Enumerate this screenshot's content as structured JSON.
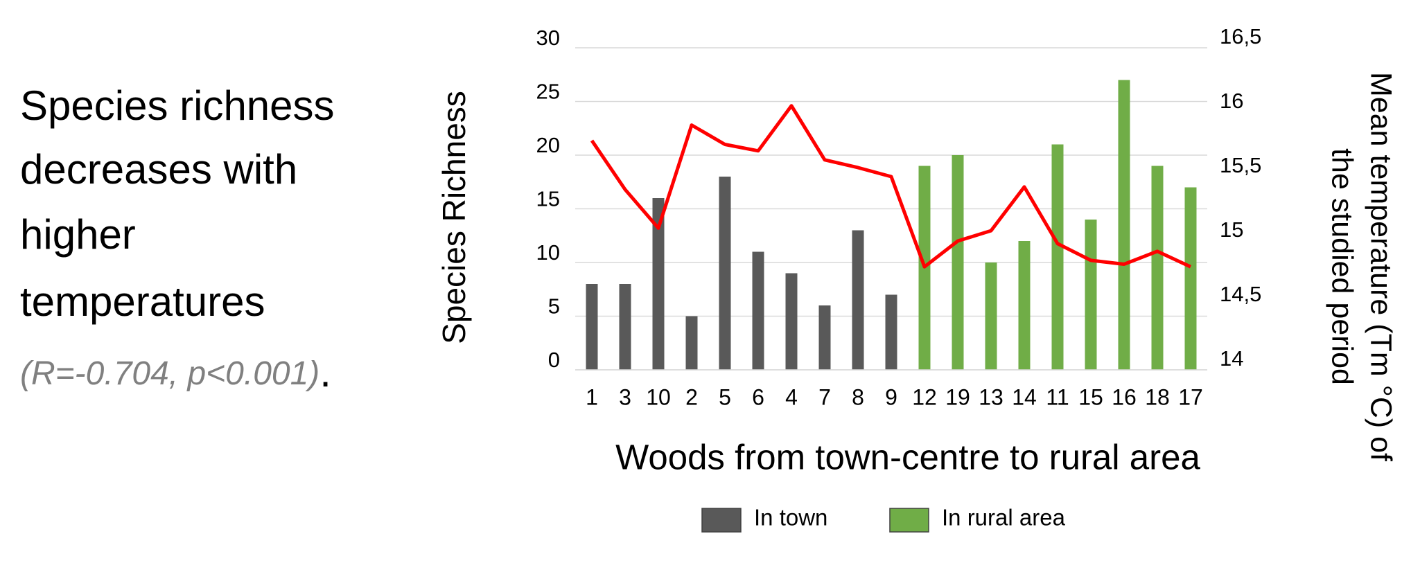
{
  "caption": {
    "lines": [
      "Species richness",
      "decreases with",
      "higher",
      "temperatures"
    ],
    "stats": "(R=-0.704, p<0.001)",
    "end": "."
  },
  "chart_data": {
    "type": "bar",
    "y_label": "Species Richness",
    "y2_label": [
      "Mean temperature (Tm °C) of",
      "the studied period"
    ],
    "x_label": "Woods from town-centre to rural area",
    "categories": [
      "1",
      "3",
      "10",
      "2",
      "5",
      "6",
      "4",
      "7",
      "8",
      "9",
      "12",
      "19",
      "13",
      "14",
      "11",
      "15",
      "16",
      "18",
      "17"
    ],
    "series": [
      {
        "name": "In town",
        "color": "#595959",
        "values": [
          8,
          8,
          16,
          5,
          18,
          11,
          9,
          6,
          13,
          7,
          null,
          null,
          null,
          null,
          null,
          null,
          null,
          null,
          null
        ]
      },
      {
        "name": "In rural area",
        "color": "#70ad47",
        "values": [
          null,
          null,
          null,
          null,
          null,
          null,
          null,
          null,
          null,
          null,
          19,
          20,
          10,
          12,
          21,
          14,
          27,
          19,
          17
        ]
      },
      {
        "type": "line",
        "axis": "y2",
        "color": "#ff0000",
        "values": [
          15.78,
          15.4,
          15.1,
          15.9,
          15.75,
          15.7,
          16.05,
          15.63,
          15.57,
          15.5,
          14.8,
          15.0,
          15.08,
          15.42,
          14.98,
          14.85,
          14.82,
          14.92,
          14.8
        ]
      }
    ],
    "ylim": [
      0,
      30
    ],
    "yticks": [
      0,
      5,
      10,
      15,
      20,
      25,
      30
    ],
    "y2lim": [
      14,
      16.5
    ],
    "y2ticks": [
      14,
      {
        "value": 14.5,
        "label": "14,5"
      },
      15,
      {
        "value": 15.5,
        "label": "15,5"
      },
      16,
      {
        "value": 16.5,
        "label": "16,5"
      }
    ],
    "grid": true,
    "legend": "bottom"
  }
}
